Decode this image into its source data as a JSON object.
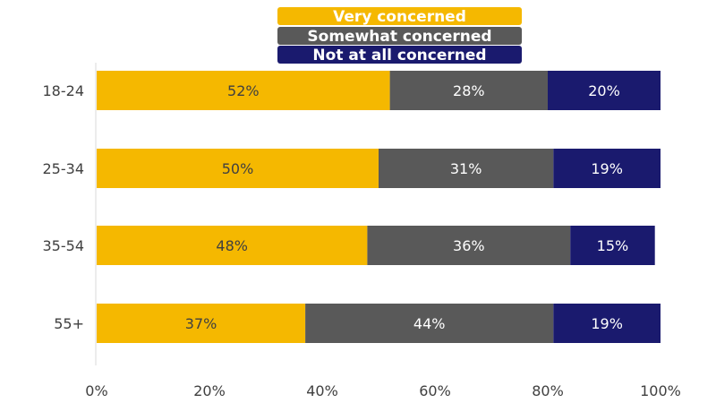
{
  "chart_data": {
    "type": "bar",
    "orientation": "horizontal",
    "stacked": true,
    "percent_stacked": true,
    "categories": [
      "18-24",
      "25-34",
      "35-54",
      "55+"
    ],
    "series": [
      {
        "name": "Very concerned",
        "values": [
          52,
          50,
          48,
          37
        ],
        "labels": [
          "52%",
          "50%",
          "48%",
          "37%"
        ],
        "color": "#F5B800",
        "label_color": "#404040"
      },
      {
        "name": "Somewhat concerned",
        "values": [
          28,
          31,
          36,
          44
        ],
        "labels": [
          "28%",
          "31%",
          "36%",
          "44%"
        ],
        "color": "#595959",
        "label_color": "#ffffff"
      },
      {
        "name": "Not at all concerned",
        "values": [
          20,
          19,
          15,
          19
        ],
        "labels": [
          "20%",
          "19%",
          "15%",
          "19%"
        ],
        "color": "#1A1A6E",
        "label_color": "#ffffff"
      }
    ],
    "x_ticks": [
      "0%",
      "20%",
      "40%",
      "60%",
      "80%",
      "100%"
    ],
    "xlim": [
      0,
      100
    ],
    "legend_position": "top",
    "grid": false
  }
}
